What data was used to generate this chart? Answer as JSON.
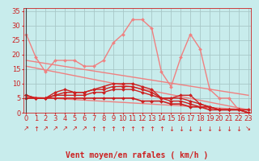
{
  "bg_color": "#c8ecec",
  "grid_color": "#a8c8c8",
  "axis_label": "Vent moyen/en rafales ( km/h )",
  "yticks": [
    0,
    5,
    10,
    15,
    20,
    25,
    30,
    35
  ],
  "xticks": [
    0,
    1,
    2,
    3,
    4,
    5,
    6,
    7,
    8,
    9,
    10,
    11,
    12,
    13,
    14,
    15,
    16,
    17,
    18,
    19,
    20,
    21,
    22,
    23
  ],
  "xlim": [
    -0.3,
    23.3
  ],
  "ylim": [
    0,
    36
  ],
  "line_light_pink": {
    "color": "#f08080",
    "lw": 1.0,
    "marker": "D",
    "ms": 2.0,
    "data": [
      [
        0,
        27
      ],
      [
        1,
        19
      ],
      [
        2,
        14
      ],
      [
        3,
        18
      ],
      [
        4,
        18
      ],
      [
        5,
        18
      ],
      [
        6,
        16
      ],
      [
        7,
        16
      ],
      [
        8,
        18
      ],
      [
        9,
        24
      ],
      [
        10,
        27
      ],
      [
        11,
        32
      ],
      [
        12,
        32
      ],
      [
        13,
        29
      ],
      [
        14,
        14
      ],
      [
        15,
        9
      ],
      [
        16,
        19
      ],
      [
        17,
        27
      ],
      [
        18,
        22
      ],
      [
        19,
        8
      ],
      [
        20,
        5
      ],
      [
        21,
        5
      ],
      [
        22,
        1
      ],
      [
        23,
        1
      ]
    ]
  },
  "line_diagonal1": {
    "color": "#f08080",
    "lw": 1.0,
    "marker": null,
    "data": [
      [
        0,
        18
      ],
      [
        23,
        6
      ]
    ]
  },
  "line_diagonal2": {
    "color": "#f08080",
    "lw": 1.0,
    "marker": null,
    "data": [
      [
        0,
        16
      ],
      [
        23,
        1
      ]
    ]
  },
  "line_flat_light": {
    "color": "#f08080",
    "lw": 1.0,
    "marker": null,
    "data": [
      [
        0,
        5.5
      ],
      [
        23,
        1
      ]
    ]
  },
  "line_red1": {
    "color": "#cc2020",
    "lw": 1.0,
    "marker": "D",
    "ms": 2.0,
    "data": [
      [
        0,
        5
      ],
      [
        1,
        5
      ],
      [
        2,
        5
      ],
      [
        3,
        7
      ],
      [
        4,
        8
      ],
      [
        5,
        7
      ],
      [
        6,
        7
      ],
      [
        7,
        8
      ],
      [
        8,
        9
      ],
      [
        9,
        10
      ],
      [
        10,
        10
      ],
      [
        11,
        10
      ],
      [
        12,
        9
      ],
      [
        13,
        8
      ],
      [
        14,
        5
      ],
      [
        15,
        5
      ],
      [
        16,
        6
      ],
      [
        17,
        6
      ],
      [
        18,
        3
      ],
      [
        19,
        2
      ],
      [
        20,
        1
      ],
      [
        21,
        1
      ],
      [
        22,
        1
      ],
      [
        23,
        0
      ]
    ]
  },
  "line_red2": {
    "color": "#cc2020",
    "lw": 1.0,
    "marker": "D",
    "ms": 2.0,
    "data": [
      [
        0,
        6
      ],
      [
        1,
        5
      ],
      [
        2,
        5
      ],
      [
        3,
        6
      ],
      [
        4,
        7
      ],
      [
        5,
        7
      ],
      [
        6,
        7
      ],
      [
        7,
        8
      ],
      [
        8,
        8
      ],
      [
        9,
        9
      ],
      [
        10,
        9
      ],
      [
        11,
        9
      ],
      [
        12,
        8
      ],
      [
        13,
        7
      ],
      [
        14,
        5
      ],
      [
        15,
        5
      ],
      [
        16,
        5
      ],
      [
        17,
        4
      ],
      [
        18,
        3
      ],
      [
        19,
        2
      ],
      [
        20,
        1
      ],
      [
        21,
        1
      ],
      [
        22,
        1
      ],
      [
        23,
        0
      ]
    ]
  },
  "line_red3": {
    "color": "#cc2020",
    "lw": 1.0,
    "marker": "D",
    "ms": 2.0,
    "data": [
      [
        0,
        6
      ],
      [
        1,
        5
      ],
      [
        2,
        5
      ],
      [
        3,
        6
      ],
      [
        4,
        6
      ],
      [
        5,
        6
      ],
      [
        6,
        6
      ],
      [
        7,
        7
      ],
      [
        8,
        7
      ],
      [
        9,
        8
      ],
      [
        10,
        8
      ],
      [
        11,
        8
      ],
      [
        12,
        7
      ],
      [
        13,
        6
      ],
      [
        14,
        5
      ],
      [
        15,
        4
      ],
      [
        16,
        4
      ],
      [
        17,
        3
      ],
      [
        18,
        2
      ],
      [
        19,
        2
      ],
      [
        20,
        1
      ],
      [
        21,
        1
      ],
      [
        22,
        1
      ],
      [
        23,
        0
      ]
    ]
  },
  "line_flat_dark": {
    "color": "#cc2020",
    "lw": 1.2,
    "marker": "D",
    "ms": 2.0,
    "data": [
      [
        0,
        5
      ],
      [
        1,
        5
      ],
      [
        2,
        5
      ],
      [
        3,
        5
      ],
      [
        4,
        5
      ],
      [
        5,
        5
      ],
      [
        6,
        5
      ],
      [
        7,
        5
      ],
      [
        8,
        5
      ],
      [
        9,
        5
      ],
      [
        10,
        5
      ],
      [
        11,
        5
      ],
      [
        12,
        4
      ],
      [
        13,
        4
      ],
      [
        14,
        4
      ],
      [
        15,
        3
      ],
      [
        16,
        3
      ],
      [
        17,
        2
      ],
      [
        18,
        2
      ],
      [
        19,
        1
      ],
      [
        20,
        1
      ],
      [
        21,
        1
      ],
      [
        22,
        1
      ],
      [
        23,
        1
      ]
    ]
  },
  "arrows": {
    "x": [
      0,
      1,
      2,
      3,
      4,
      5,
      6,
      7,
      8,
      9,
      10,
      11,
      12,
      13,
      14,
      15,
      16,
      17,
      18,
      19,
      20,
      21,
      22,
      23
    ],
    "chars": [
      "↗",
      "↑",
      "↗",
      "↗",
      "↗",
      "↗",
      "↗",
      "↑",
      "↑",
      "↑",
      "↑",
      "↑",
      "↑",
      "↑",
      "↑",
      "↓",
      "↓",
      "↓",
      "↓",
      "↓",
      "↓",
      "↓",
      "↓",
      "↘"
    ],
    "color": "#cc2020"
  },
  "tick_label_color": "#cc2020",
  "axis_label_color": "#cc2020",
  "axis_label_fontsize": 7,
  "tick_fontsize": 6,
  "arrow_fontsize": 6
}
